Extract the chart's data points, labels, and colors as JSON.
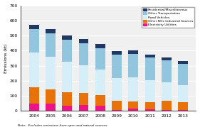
{
  "years": [
    2004,
    2005,
    2006,
    2007,
    2008,
    2009,
    2010,
    2011,
    2012,
    2013
  ],
  "electricity_utilities": [
    48,
    48,
    33,
    38,
    33,
    8,
    18,
    10,
    8,
    6
  ],
  "other_nox_industrial": [
    108,
    95,
    92,
    80,
    72,
    62,
    45,
    50,
    58,
    52
  ],
  "road_vehicles": [
    230,
    215,
    200,
    185,
    170,
    150,
    160,
    145,
    125,
    115
  ],
  "other_transportation": [
    155,
    155,
    145,
    145,
    140,
    155,
    155,
    150,
    145,
    140
  ],
  "residential_misc": [
    28,
    30,
    32,
    30,
    28,
    20,
    22,
    20,
    18,
    18
  ],
  "colors": {
    "electricity_utilities": "#EE1188",
    "other_nox_industrial": "#E8710A",
    "road_vehicles": "#D6EEF8",
    "other_transportation": "#92C5DE",
    "residential_misc": "#1F3864"
  },
  "ylabel": "Emissions (kt)",
  "ylim": [
    0,
    700
  ],
  "yticks": [
    0,
    100,
    200,
    300,
    400,
    500,
    600,
    700
  ],
  "note": "Note:  Excludes emissions from open and natural sources.",
  "background_color": "#f0f0f0"
}
